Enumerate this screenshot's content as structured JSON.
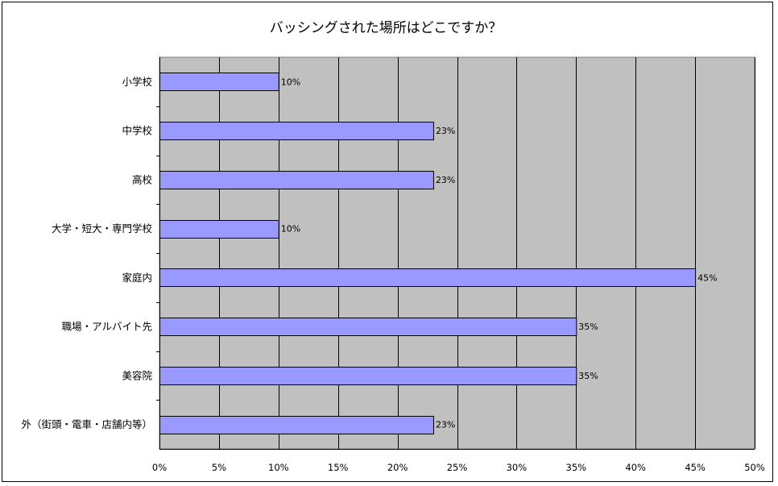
{
  "chart_data": {
    "type": "bar",
    "orientation": "horizontal",
    "title": "バッシングされた場所はどこですか？",
    "categories": [
      "小学校",
      "中学校",
      "高校",
      "大学・短大・専門学校",
      "家庭内",
      "職場・アルバイト先",
      "美容院",
      "外（街頭・電車・店舗内等）"
    ],
    "values": [
      10,
      23,
      23,
      10,
      45,
      35,
      35,
      23
    ],
    "data_labels": [
      "10%",
      "23%",
      "23%",
      "10%",
      "45%",
      "35%",
      "35%",
      "23%"
    ],
    "xlim": [
      0,
      50
    ],
    "x_ticks": [
      0,
      5,
      10,
      15,
      20,
      25,
      30,
      35,
      40,
      45,
      50
    ],
    "x_tick_labels": [
      "0%",
      "5%",
      "10%",
      "15%",
      "20%",
      "25%",
      "30%",
      "35%",
      "40%",
      "45%",
      "50%"
    ],
    "xlabel": "",
    "ylabel": "",
    "grid": true,
    "legend": false,
    "colors": {
      "bar_fill": "#9999ff",
      "bar_stroke": "#000000",
      "plot_background": "#c0c0c0",
      "gridline": "#000000"
    }
  }
}
